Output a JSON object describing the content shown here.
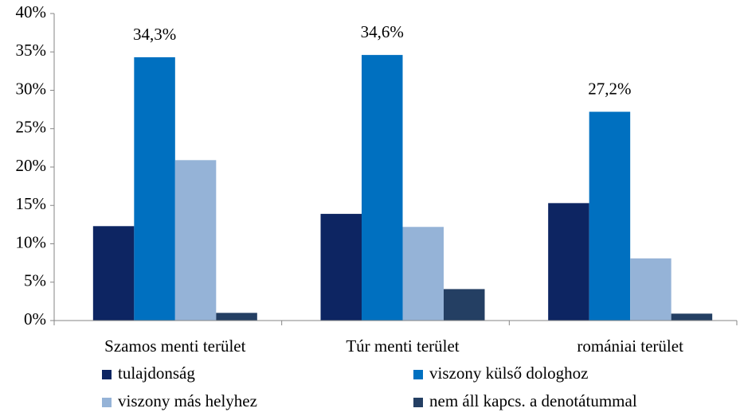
{
  "chart_data": {
    "type": "bar",
    "categories": [
      "Szamos menti terület",
      "Túr menti terület",
      "romániai terület"
    ],
    "series": [
      {
        "name": "tulajdonság",
        "color": "#0d2562",
        "values": [
          12.3,
          13.9,
          15.3
        ]
      },
      {
        "name": "viszony külső dologhoz",
        "color": "#0070c0",
        "values": [
          34.3,
          34.6,
          27.2
        ],
        "value_labels": [
          "34,3%",
          "34,6%",
          "27,2%"
        ]
      },
      {
        "name": "viszony más helyhez",
        "color": "#95b3d7",
        "values": [
          20.9,
          12.2,
          8.1
        ]
      },
      {
        "name": "nem áll kapcs. a denotátummal",
        "color": "#243f63",
        "values": [
          1.0,
          4.1,
          0.9
        ]
      }
    ],
    "ylim": [
      0,
      40
    ],
    "yticks": [
      {
        "value": 0,
        "label": "0%"
      },
      {
        "value": 5,
        "label": "5%"
      },
      {
        "value": 10,
        "label": "10%"
      },
      {
        "value": 15,
        "label": "15%"
      },
      {
        "value": 20,
        "label": "20%"
      },
      {
        "value": 25,
        "label": "25%"
      },
      {
        "value": 30,
        "label": "30%"
      },
      {
        "value": 35,
        "label": "35%"
      },
      {
        "value": 40,
        "label": "40%"
      }
    ],
    "grid": false,
    "legend": "bottom"
  }
}
